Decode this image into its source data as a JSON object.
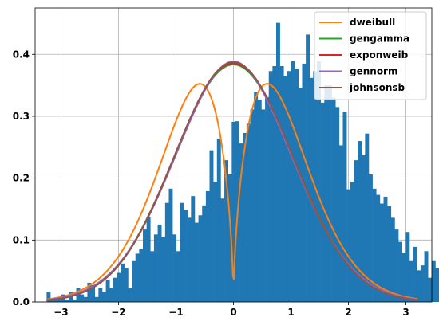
{
  "chart_data": {
    "type": "histogram+line",
    "title": "",
    "xlabel": "",
    "ylabel": "",
    "xlim": [
      -3.45,
      3.45
    ],
    "ylim": [
      0,
      0.475
    ],
    "grid": true,
    "legend_position": "top-right",
    "x_ticks": [
      -3,
      -2,
      -1,
      0,
      1,
      2,
      3
    ],
    "x_tick_labels": [
      "−3",
      "−2",
      "−1",
      "0",
      "1",
      "2",
      "3"
    ],
    "y_ticks": [
      0.0,
      0.1,
      0.2,
      0.3,
      0.4
    ],
    "y_tick_labels": [
      "0.0",
      "0.1",
      "0.2",
      "0.3",
      "0.4"
    ],
    "histogram": {
      "color": "#1f77b4",
      "bin_start": -3.25,
      "bin_width": 0.0644,
      "values": [
        0.016,
        0.004,
        0.004,
        0.008,
        0.012,
        0.004,
        0.016,
        0.004,
        0.023,
        0.012,
        0.008,
        0.031,
        0.027,
        0.008,
        0.023,
        0.016,
        0.035,
        0.023,
        0.039,
        0.047,
        0.062,
        0.055,
        0.023,
        0.066,
        0.078,
        0.086,
        0.117,
        0.137,
        0.082,
        0.109,
        0.125,
        0.105,
        0.16,
        0.183,
        0.109,
        0.082,
        0.16,
        0.148,
        0.136,
        0.171,
        0.128,
        0.14,
        0.156,
        0.179,
        0.245,
        0.194,
        0.264,
        0.167,
        0.229,
        0.206,
        0.291,
        0.292,
        0.256,
        0.273,
        0.288,
        0.311,
        0.339,
        0.327,
        0.311,
        0.331,
        0.373,
        0.381,
        0.451,
        0.381,
        0.365,
        0.373,
        0.389,
        0.377,
        0.346,
        0.385,
        0.432,
        0.362,
        0.373,
        0.389,
        0.322,
        0.35,
        0.35,
        0.33,
        0.315,
        0.253,
        0.307,
        0.182,
        0.194,
        0.229,
        0.26,
        0.237,
        0.272,
        0.206,
        0.183,
        0.173,
        0.159,
        0.17,
        0.155,
        0.136,
        0.117,
        0.097,
        0.079,
        0.113,
        0.066,
        0.089,
        0.051,
        0.059,
        0.082,
        0.039,
        0.066,
        0.055,
        0.055,
        0.062,
        0.008,
        0.043,
        0.027,
        0.012,
        0.016,
        0.008,
        0.016,
        0.004,
        0.012,
        0.004,
        0.004,
        0.012,
        0.012,
        0.004,
        0.004,
        0.008,
        0.004,
        0.004,
        0.012,
        0.004,
        0.004,
        0.004
      ]
    },
    "series": [
      {
        "name": "dweibull",
        "color": "#ff7f0e",
        "dist": "dweibull",
        "params": {
          "c": 1.6,
          "scale": 1.08
        }
      },
      {
        "name": "gengamma",
        "color": "#2ca02c",
        "dist": "normal",
        "params": {
          "mu": 0.0,
          "sigma": 1.04
        }
      },
      {
        "name": "exponweib",
        "color": "#d62728",
        "dist": "normal",
        "params": {
          "mu": 0.0,
          "sigma": 1.035
        }
      },
      {
        "name": "gennorm",
        "color": "#9467bd",
        "dist": "gennorm",
        "params": {
          "beta": 1.92,
          "scale": 1.45
        }
      },
      {
        "name": "johnsonsb",
        "color": "#8c564b",
        "dist": "normal",
        "params": {
          "mu": 0.0,
          "sigma": 1.03
        }
      }
    ],
    "curve_x_range": [
      -3.25,
      3.2
    ]
  }
}
